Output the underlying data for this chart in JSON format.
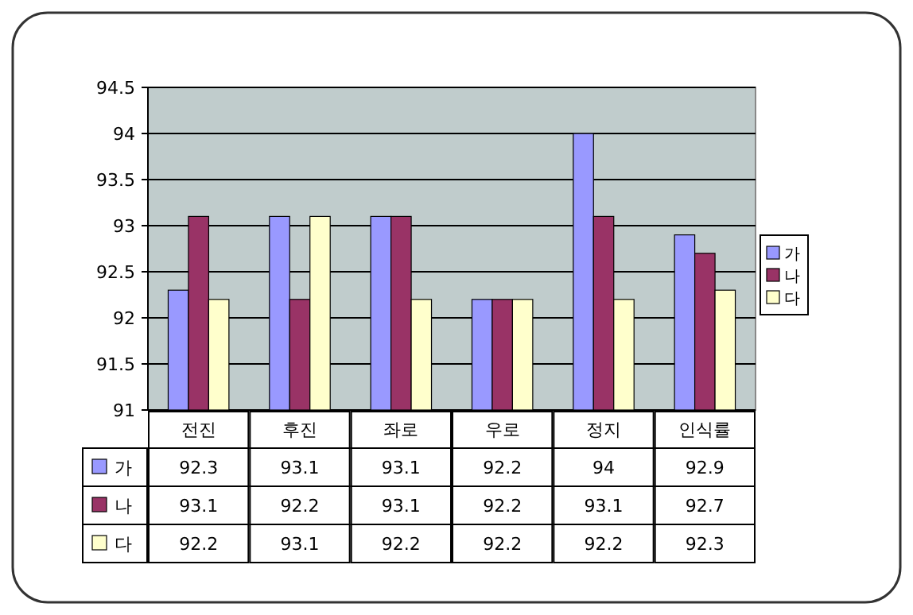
{
  "chart_data": {
    "type": "bar",
    "categories": [
      "전진",
      "후진",
      "좌로",
      "우로",
      "정지",
      "인식률"
    ],
    "series": [
      {
        "name": "가",
        "color": "#9999ff",
        "values": [
          92.3,
          93.1,
          93.1,
          92.2,
          94,
          92.9
        ]
      },
      {
        "name": "나",
        "color": "#993366",
        "values": [
          93.1,
          92.2,
          93.1,
          92.2,
          93.1,
          92.7
        ]
      },
      {
        "name": "다",
        "color": "#ffffcc",
        "values": [
          92.2,
          93.1,
          92.2,
          92.2,
          92.2,
          92.3
        ]
      }
    ],
    "ylim": [
      91,
      94.5
    ],
    "yticks": [
      91,
      91.5,
      92,
      92.5,
      93,
      93.5,
      94,
      94.5
    ],
    "grid": "y",
    "legend": "right",
    "data_labels": true
  }
}
